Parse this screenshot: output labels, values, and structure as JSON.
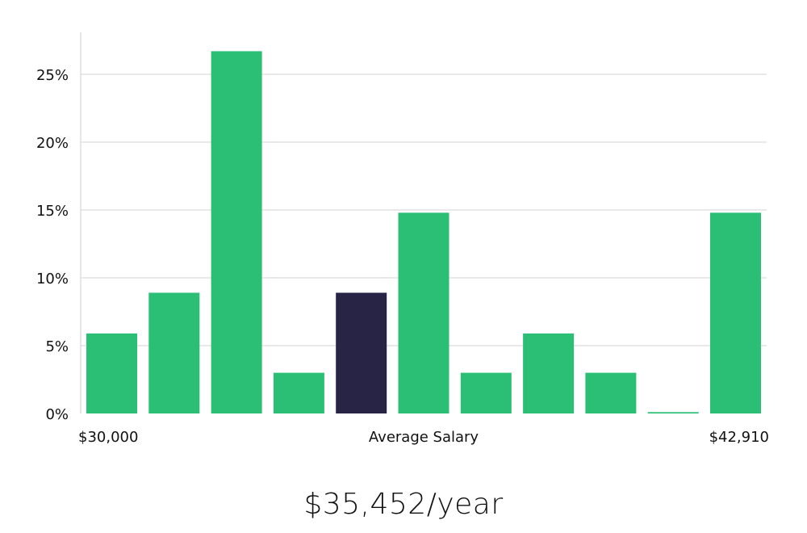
{
  "chart_data": {
    "type": "bar",
    "title": "",
    "ylabel": "",
    "ylim": [
      0,
      28
    ],
    "yticks": [
      0,
      5,
      10,
      15,
      20,
      25
    ],
    "ytick_labels": [
      "0%",
      "5%",
      "10%",
      "15%",
      "20%",
      "25%"
    ],
    "grid": true,
    "x_labels": {
      "left": "$30,000",
      "center": "Average Salary",
      "right": "$42,910"
    },
    "values": [
      5.9,
      8.9,
      26.7,
      3.0,
      8.9,
      14.8,
      3.0,
      5.9,
      3.0,
      0.1,
      14.8
    ],
    "highlight_index": 4,
    "colors": {
      "bar": "#2bbf76",
      "highlight": "#272446",
      "grid": "#e2e2e2",
      "axis": "#dddddd"
    }
  },
  "summary": {
    "salary": "$35,452/year"
  }
}
